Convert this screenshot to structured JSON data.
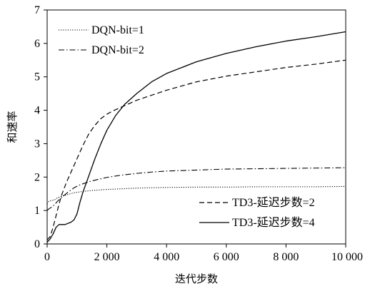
{
  "chart_data": {
    "type": "line",
    "title": "",
    "xlabel": "迭代步数",
    "ylabel": "和速率",
    "xlim": [
      0,
      10000
    ],
    "ylim": [
      0,
      7
    ],
    "xticks": [
      0,
      2000,
      4000,
      6000,
      8000,
      10000
    ],
    "xtick_labels": [
      "0",
      "2 000",
      "4 000",
      "6 000",
      "8 000",
      "10 000"
    ],
    "yticks": [
      0,
      1,
      2,
      3,
      4,
      5,
      6,
      7
    ],
    "ytick_labels": [
      "0",
      "1",
      "2",
      "3",
      "4",
      "5",
      "6",
      "7"
    ],
    "grid": false,
    "legend": {
      "top": [
        "DQN-bit=1",
        "DQN-bit=2"
      ],
      "bottom": [
        "TD3-延迟步数=2",
        "TD3-延迟步数=4"
      ]
    },
    "series": [
      {
        "name": "DQN-bit=1",
        "style": "dotted",
        "x": [
          0,
          60,
          150,
          250,
          350,
          500,
          700,
          900,
          1200,
          1500,
          2000,
          2500,
          3000,
          4000,
          5000,
          6000,
          7000,
          8000,
          9000,
          10000
        ],
        "y": [
          1.2,
          1.28,
          1.3,
          1.32,
          1.38,
          1.43,
          1.48,
          1.53,
          1.57,
          1.6,
          1.63,
          1.65,
          1.67,
          1.69,
          1.7,
          1.7,
          1.71,
          1.71,
          1.71,
          1.72
        ]
      },
      {
        "name": "DQN-bit=2",
        "style": "dashdot",
        "x": [
          0,
          60,
          150,
          250,
          350,
          500,
          700,
          900,
          1100,
          1400,
          1700,
          2000,
          2500,
          3000,
          3500,
          4000,
          5000,
          6000,
          7000,
          8000,
          9000,
          10000
        ],
        "y": [
          1.0,
          1.05,
          1.1,
          1.18,
          1.28,
          1.4,
          1.55,
          1.68,
          1.77,
          1.86,
          1.93,
          1.99,
          2.06,
          2.11,
          2.15,
          2.18,
          2.21,
          2.24,
          2.25,
          2.26,
          2.27,
          2.28
        ]
      },
      {
        "name": "TD3-延迟步数=2",
        "style": "dashed",
        "x": [
          0,
          100,
          200,
          300,
          400,
          500,
          650,
          800,
          1000,
          1200,
          1400,
          1600,
          1800,
          2000,
          2200,
          2500,
          3000,
          3500,
          4000,
          5000,
          6000,
          7000,
          8000,
          9000,
          10000
        ],
        "y": [
          0.12,
          0.22,
          0.5,
          0.85,
          1.2,
          1.5,
          1.85,
          2.15,
          2.55,
          2.95,
          3.3,
          3.55,
          3.75,
          3.88,
          3.98,
          4.1,
          4.3,
          4.45,
          4.6,
          4.85,
          5.02,
          5.15,
          5.28,
          5.38,
          5.5
        ]
      },
      {
        "name": "TD3-延迟步数=4",
        "style": "solid",
        "x": [
          0,
          100,
          200,
          300,
          400,
          600,
          800,
          900,
          1000,
          1100,
          1200,
          1400,
          1600,
          1800,
          2000,
          2300,
          2600,
          3000,
          3500,
          4000,
          5000,
          6000,
          7000,
          8000,
          9000,
          10000
        ],
        "y": [
          0.05,
          0.15,
          0.3,
          0.5,
          0.58,
          0.58,
          0.65,
          0.72,
          0.9,
          1.25,
          1.55,
          2.05,
          2.55,
          3.0,
          3.4,
          3.85,
          4.18,
          4.5,
          4.85,
          5.1,
          5.45,
          5.7,
          5.9,
          6.07,
          6.2,
          6.35
        ]
      }
    ]
  }
}
